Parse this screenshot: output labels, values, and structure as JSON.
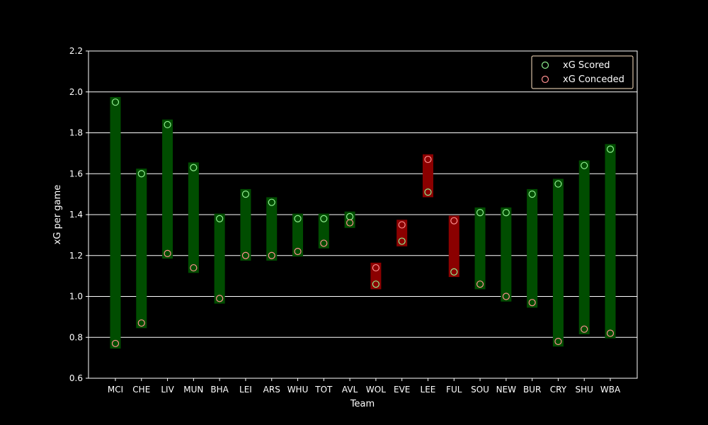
{
  "chart_data": {
    "type": "range",
    "title": "",
    "xlabel": "Team",
    "ylabel": "xG per game",
    "ylim": [
      0.6,
      2.2
    ],
    "yticks": [
      "0.6",
      "0.8",
      "1.0",
      "1.2",
      "1.4",
      "1.6",
      "1.8",
      "2.0",
      "2.2"
    ],
    "grid": "horizontal",
    "legend_position": "top-right",
    "background": "#000000",
    "categories": [
      "MCI",
      "CHE",
      "LIV",
      "MUN",
      "BHA",
      "LEI",
      "ARS",
      "WHU",
      "TOT",
      "AVL",
      "WOL",
      "EVE",
      "LEE",
      "FUL",
      "SOU",
      "NEW",
      "BUR",
      "CRY",
      "SHU",
      "WBA"
    ],
    "series": [
      {
        "name": "xG Scored",
        "marker_color": "#90ee90",
        "values": [
          1.95,
          1.6,
          1.84,
          1.63,
          1.38,
          1.5,
          1.46,
          1.38,
          1.38,
          1.39,
          1.06,
          1.27,
          1.51,
          1.12,
          1.41,
          1.41,
          1.5,
          1.55,
          1.64,
          1.72
        ]
      },
      {
        "name": "xG Conceded",
        "marker_color": "#ff9090",
        "values": [
          0.77,
          0.87,
          1.21,
          1.14,
          0.99,
          1.2,
          1.2,
          1.22,
          1.26,
          1.36,
          1.14,
          1.35,
          1.67,
          1.37,
          1.06,
          1.0,
          0.97,
          0.78,
          0.84,
          0.82
        ]
      }
    ],
    "bar_colors": {
      "positive": "#004d00",
      "negative": "#8b0000"
    }
  }
}
